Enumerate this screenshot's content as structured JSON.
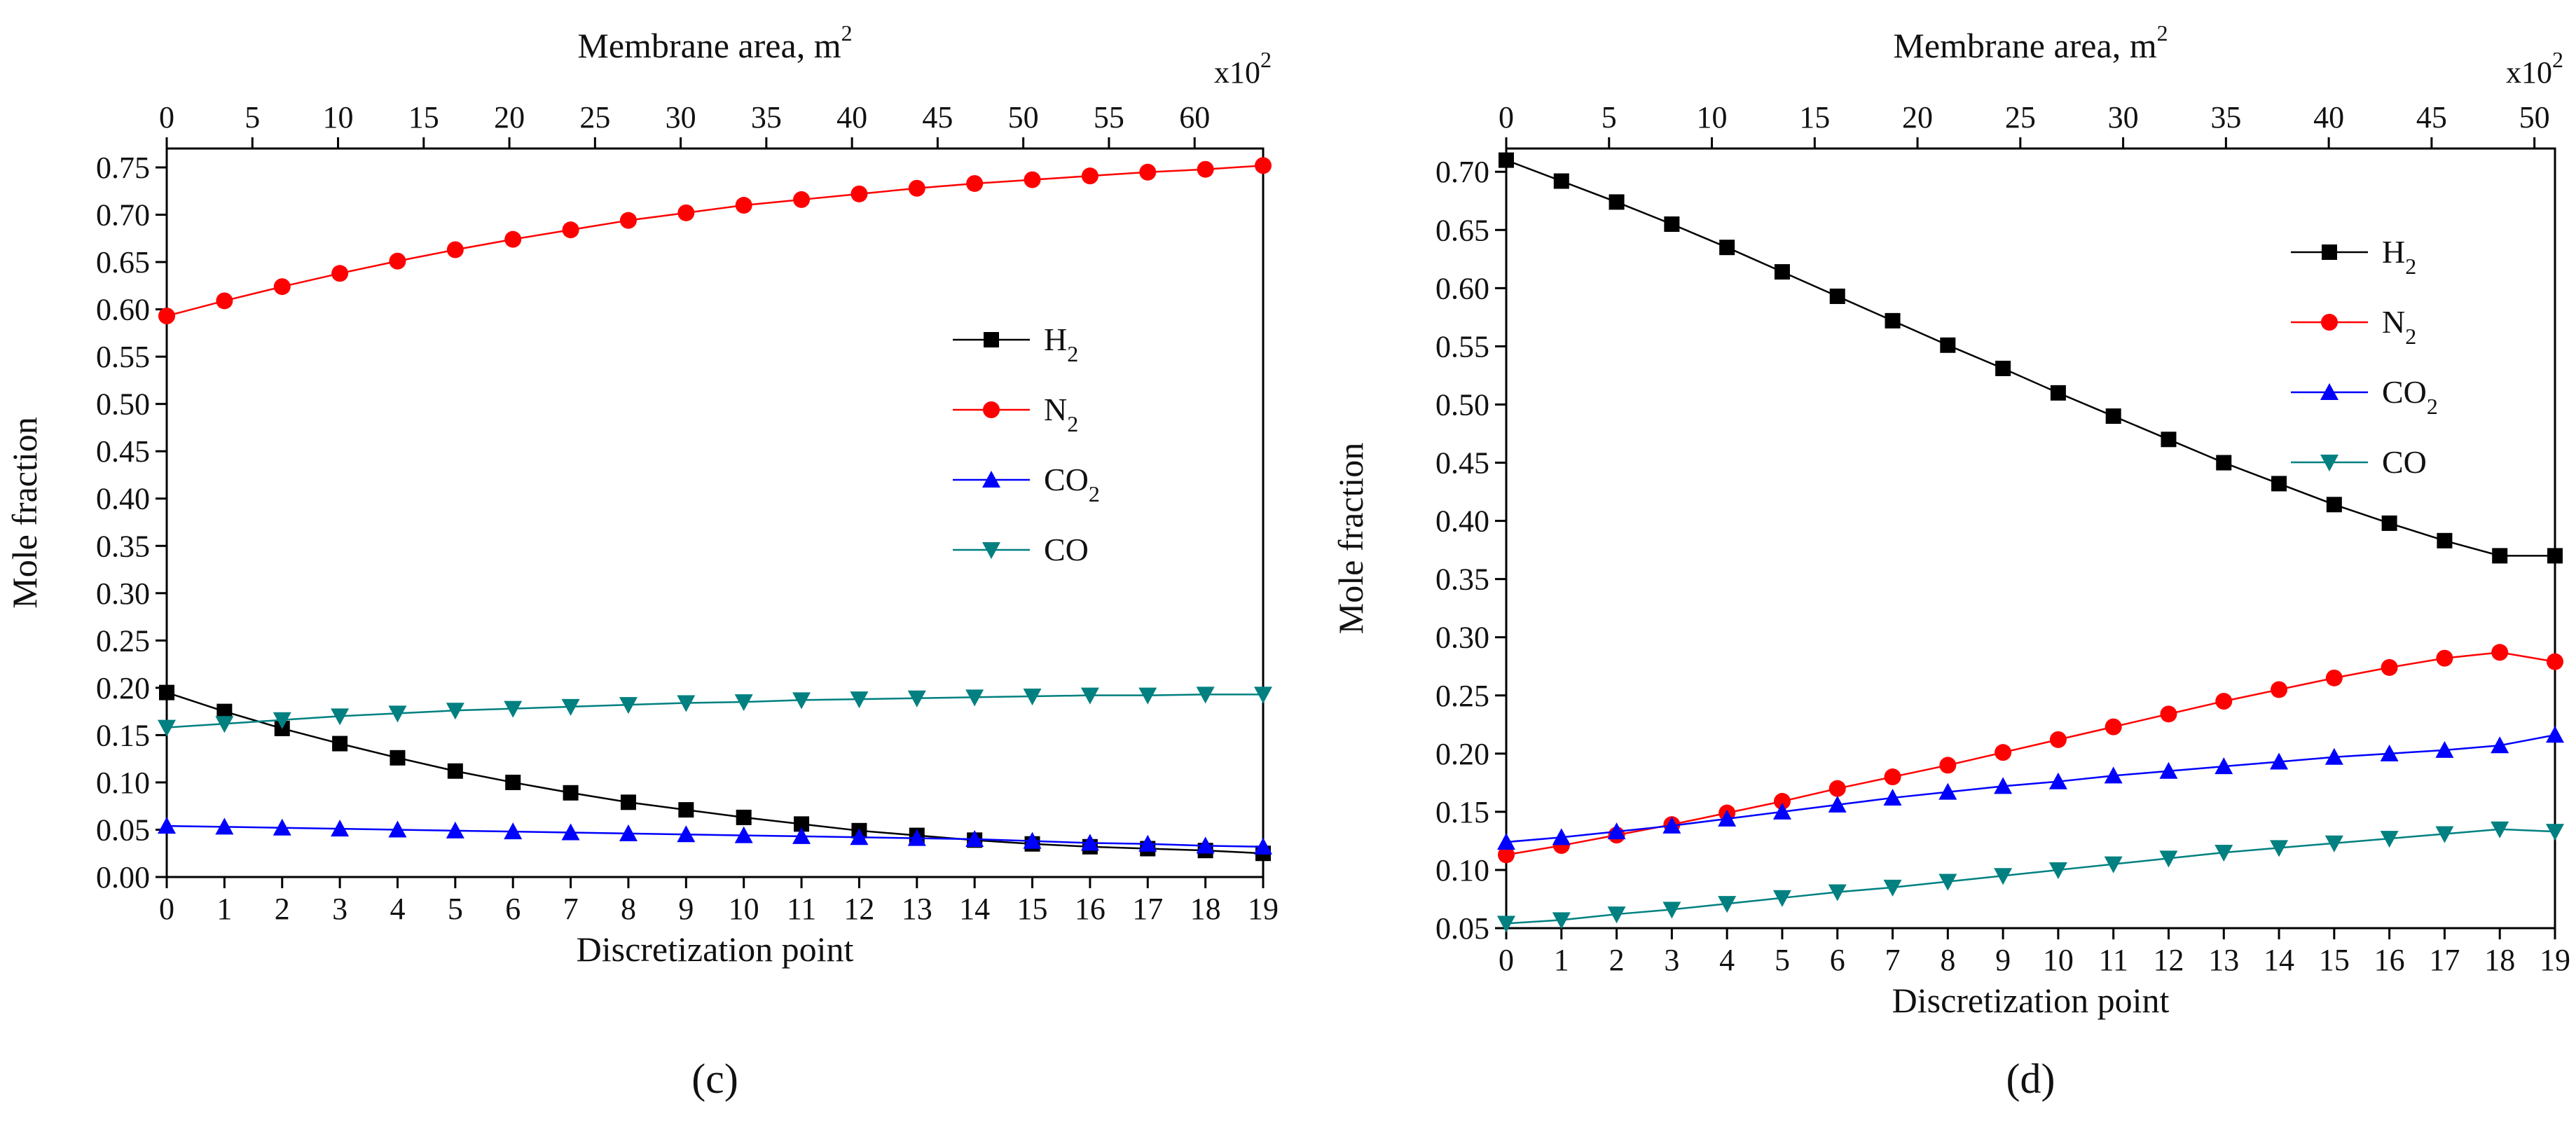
{
  "chart_data": [
    {
      "type": "line",
      "panel_label": "(c)",
      "xlabel": "Discretization point",
      "ylabel": "Mole fraction",
      "top_axis_label": "Membrane area, m",
      "top_axis_label_sup": "2",
      "top_axis_multiplier": "x10",
      "top_axis_multiplier_sup": "2",
      "top_axis_ticks": [
        "0",
        "5",
        "10",
        "15",
        "20",
        "25",
        "30",
        "35",
        "40",
        "45",
        "50",
        "55",
        "60"
      ],
      "top_axis_range": [
        0,
        64
      ],
      "x": [
        0,
        1,
        2,
        3,
        4,
        5,
        6,
        7,
        8,
        9,
        10,
        11,
        12,
        13,
        14,
        15,
        16,
        17,
        18,
        19
      ],
      "xlim": [
        0,
        19
      ],
      "ylim": [
        0.0,
        0.77
      ],
      "yticks": [
        "0.00",
        "0.05",
        "0.10",
        "0.15",
        "0.20",
        "0.25",
        "0.30",
        "0.35",
        "0.40",
        "0.45",
        "0.50",
        "0.55",
        "0.60",
        "0.65",
        "0.70",
        "0.75"
      ],
      "legend_position": "right",
      "series": [
        {
          "name": "H",
          "sub": "2",
          "color": "#000000",
          "marker": "square",
          "values": [
            0.195,
            0.175,
            0.157,
            0.141,
            0.126,
            0.112,
            0.1,
            0.089,
            0.079,
            0.071,
            0.063,
            0.056,
            0.049,
            0.044,
            0.039,
            0.035,
            0.032,
            0.03,
            0.028,
            0.025
          ]
        },
        {
          "name": "N",
          "sub": "2",
          "color": "#ff0000",
          "marker": "circle",
          "values": [
            0.593,
            0.609,
            0.624,
            0.638,
            0.651,
            0.663,
            0.674,
            0.684,
            0.694,
            0.702,
            0.71,
            0.716,
            0.722,
            0.728,
            0.733,
            0.737,
            0.741,
            0.745,
            0.748,
            0.752
          ]
        },
        {
          "name": "CO",
          "sub": "2",
          "color": "#0000ff",
          "marker": "triangle-up",
          "values": [
            0.054,
            0.053,
            0.052,
            0.051,
            0.05,
            0.049,
            0.048,
            0.047,
            0.046,
            0.045,
            0.044,
            0.043,
            0.042,
            0.041,
            0.04,
            0.038,
            0.036,
            0.035,
            0.033,
            0.032
          ]
        },
        {
          "name": "CO",
          "sub": "",
          "color": "#008080",
          "marker": "triangle-down",
          "values": [
            0.158,
            0.162,
            0.166,
            0.17,
            0.173,
            0.176,
            0.178,
            0.18,
            0.182,
            0.184,
            0.185,
            0.187,
            0.188,
            0.189,
            0.19,
            0.191,
            0.192,
            0.192,
            0.193,
            0.193
          ]
        }
      ]
    },
    {
      "type": "line",
      "panel_label": "(d)",
      "xlabel": "Discretization point",
      "ylabel": "Mole fraction",
      "top_axis_label": "Membrane area, m",
      "top_axis_label_sup": "2",
      "top_axis_multiplier": "x10",
      "top_axis_multiplier_sup": "2",
      "top_axis_ticks": [
        "0",
        "5",
        "10",
        "15",
        "20",
        "25",
        "30",
        "35",
        "40",
        "45",
        "50"
      ],
      "top_axis_range": [
        0,
        51
      ],
      "x": [
        0,
        1,
        2,
        3,
        4,
        5,
        6,
        7,
        8,
        9,
        10,
        11,
        12,
        13,
        14,
        15,
        16,
        17,
        18,
        19
      ],
      "xlim": [
        0,
        19
      ],
      "ylim": [
        0.05,
        0.72
      ],
      "yticks": [
        "0.05",
        "0.10",
        "0.15",
        "0.20",
        "0.25",
        "0.30",
        "0.35",
        "0.40",
        "0.45",
        "0.50",
        "0.55",
        "0.60",
        "0.65",
        "0.70"
      ],
      "legend_position": "top-right",
      "series": [
        {
          "name": "H",
          "sub": "2",
          "color": "#000000",
          "marker": "square",
          "values": [
            0.71,
            0.692,
            0.674,
            0.655,
            0.635,
            0.614,
            0.593,
            0.572,
            0.551,
            0.531,
            0.51,
            0.49,
            0.47,
            0.45,
            0.432,
            0.414,
            0.398,
            0.383,
            0.37,
            0.37
          ]
        },
        {
          "name": "N",
          "sub": "2",
          "color": "#ff0000",
          "marker": "circle",
          "values": [
            0.113,
            0.121,
            0.13,
            0.139,
            0.149,
            0.159,
            0.17,
            0.18,
            0.19,
            0.201,
            0.212,
            0.223,
            0.234,
            0.245,
            0.255,
            0.265,
            0.274,
            0.282,
            0.287,
            0.279
          ]
        },
        {
          "name": "CO",
          "sub": "2",
          "color": "#0000ff",
          "marker": "triangle-up",
          "values": [
            0.124,
            0.128,
            0.133,
            0.138,
            0.144,
            0.15,
            0.156,
            0.162,
            0.167,
            0.172,
            0.176,
            0.181,
            0.185,
            0.189,
            0.193,
            0.197,
            0.2,
            0.203,
            0.207,
            0.216
          ]
        },
        {
          "name": "CO",
          "sub": "",
          "color": "#008080",
          "marker": "triangle-down",
          "values": [
            0.054,
            0.057,
            0.062,
            0.066,
            0.071,
            0.076,
            0.081,
            0.085,
            0.09,
            0.095,
            0.1,
            0.105,
            0.11,
            0.115,
            0.119,
            0.123,
            0.127,
            0.131,
            0.135,
            0.133
          ]
        }
      ]
    }
  ]
}
